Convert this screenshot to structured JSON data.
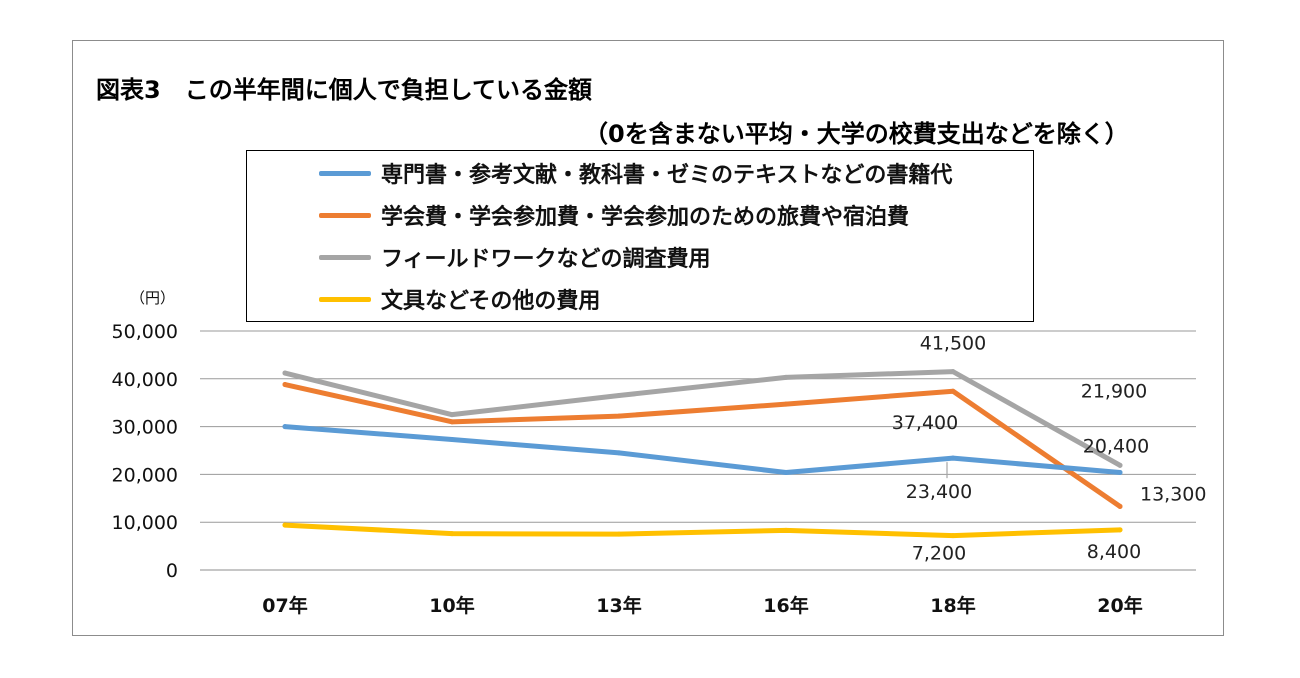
{
  "chart_data": {
    "type": "line",
    "title": "図表3　この半年間に個人で負担している金額",
    "subtitle": "（0を含まない平均・大学の校費支出などを除く）",
    "y_unit": "（円）",
    "categories": [
      "07年",
      "10年",
      "13年",
      "16年",
      "18年",
      "20年"
    ],
    "ylim": [
      0,
      50000
    ],
    "yticks": [
      "0",
      "10,000",
      "20,000",
      "30,000",
      "40,000",
      "50,000"
    ],
    "ytick_values": [
      0,
      10000,
      20000,
      30000,
      40000,
      50000
    ],
    "grid": true,
    "legend_position": "top",
    "series": [
      {
        "name": "専門書・参考文献・教科書・ゼミのテキストなどの書籍代",
        "color": "#5b9bd5",
        "values": [
          30000,
          27300,
          24500,
          20400,
          23400,
          20400
        ]
      },
      {
        "name": "学会費・学会参加費・学会参加のための旅費や宿泊費",
        "color": "#ed7d31",
        "values": [
          38800,
          31000,
          32200,
          34700,
          37400,
          13300
        ]
      },
      {
        "name": "フィールドワークなどの調査費用",
        "color": "#a5a5a5",
        "values": [
          41200,
          32500,
          36500,
          40300,
          41500,
          21900
        ]
      },
      {
        "name": "文具などその他の費用",
        "color": "#ffc000",
        "values": [
          9400,
          7600,
          7500,
          8300,
          7200,
          8400
        ]
      }
    ],
    "data_labels": [
      {
        "text": "41,500",
        "series": 2,
        "index": 4
      },
      {
        "text": "21,900",
        "series": 2,
        "index": 5
      },
      {
        "text": "37,400",
        "series": 1,
        "index": 4
      },
      {
        "text": "20,400",
        "series": 0,
        "index": 5
      },
      {
        "text": "23,400",
        "series": 0,
        "index": 4
      },
      {
        "text": "13,300",
        "series": 1,
        "index": 5
      },
      {
        "text": "7,200",
        "series": 3,
        "index": 4
      },
      {
        "text": "8,400",
        "series": 3,
        "index": 5
      }
    ]
  }
}
